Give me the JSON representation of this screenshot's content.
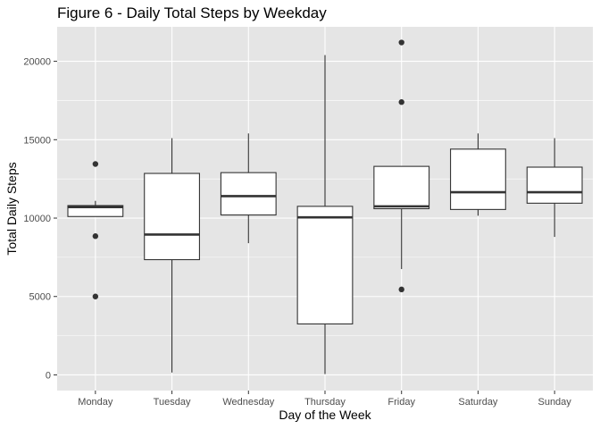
{
  "chart_data": {
    "type": "boxplot",
    "title": "Figure 6 - Daily Total Steps by Weekday",
    "xlabel": "Day of the Week",
    "ylabel": "Total Daily Steps",
    "ylim": [
      -1000,
      22200
    ],
    "yticks": [
      0,
      5000,
      10000,
      15000,
      20000
    ],
    "ytick_labels": [
      "0",
      "5000",
      "10000",
      "15000",
      "20000"
    ],
    "grid": true,
    "colors": {
      "panel": "#e5e5e5",
      "grid_major": "#ffffff",
      "box_fill": "#ffffff",
      "box_line": "#333333",
      "tick_label": "#4d4d4d"
    },
    "categories": [
      "Monday",
      "Tuesday",
      "Wednesday",
      "Thursday",
      "Friday",
      "Saturday",
      "Sunday"
    ],
    "boxes": [
      {
        "category": "Monday",
        "whisker_low": 10100,
        "q1": 10100,
        "median": 10700,
        "q3": 10800,
        "whisker_high": 11100,
        "outliers": [
          5000,
          8850,
          13450
        ]
      },
      {
        "category": "Tuesday",
        "whisker_low": 150,
        "q1": 7350,
        "median": 8950,
        "q3": 12850,
        "whisker_high": 15100,
        "outliers": []
      },
      {
        "category": "Wednesday",
        "whisker_low": 8400,
        "q1": 10200,
        "median": 11400,
        "q3": 12900,
        "whisker_high": 15400,
        "outliers": []
      },
      {
        "category": "Thursday",
        "whisker_low": 50,
        "q1": 3250,
        "median": 10050,
        "q3": 10750,
        "whisker_high": 20400,
        "outliers": []
      },
      {
        "category": "Friday",
        "whisker_low": 6750,
        "q1": 10600,
        "median": 10750,
        "q3": 13300,
        "whisker_high": 13300,
        "outliers": [
          5450,
          17400,
          21200
        ]
      },
      {
        "category": "Saturday",
        "whisker_low": 10150,
        "q1": 10550,
        "median": 11650,
        "q3": 14400,
        "whisker_high": 15400,
        "outliers": []
      },
      {
        "category": "Sunday",
        "whisker_low": 8800,
        "q1": 10950,
        "median": 11650,
        "q3": 13250,
        "whisker_high": 15100,
        "outliers": []
      }
    ]
  }
}
